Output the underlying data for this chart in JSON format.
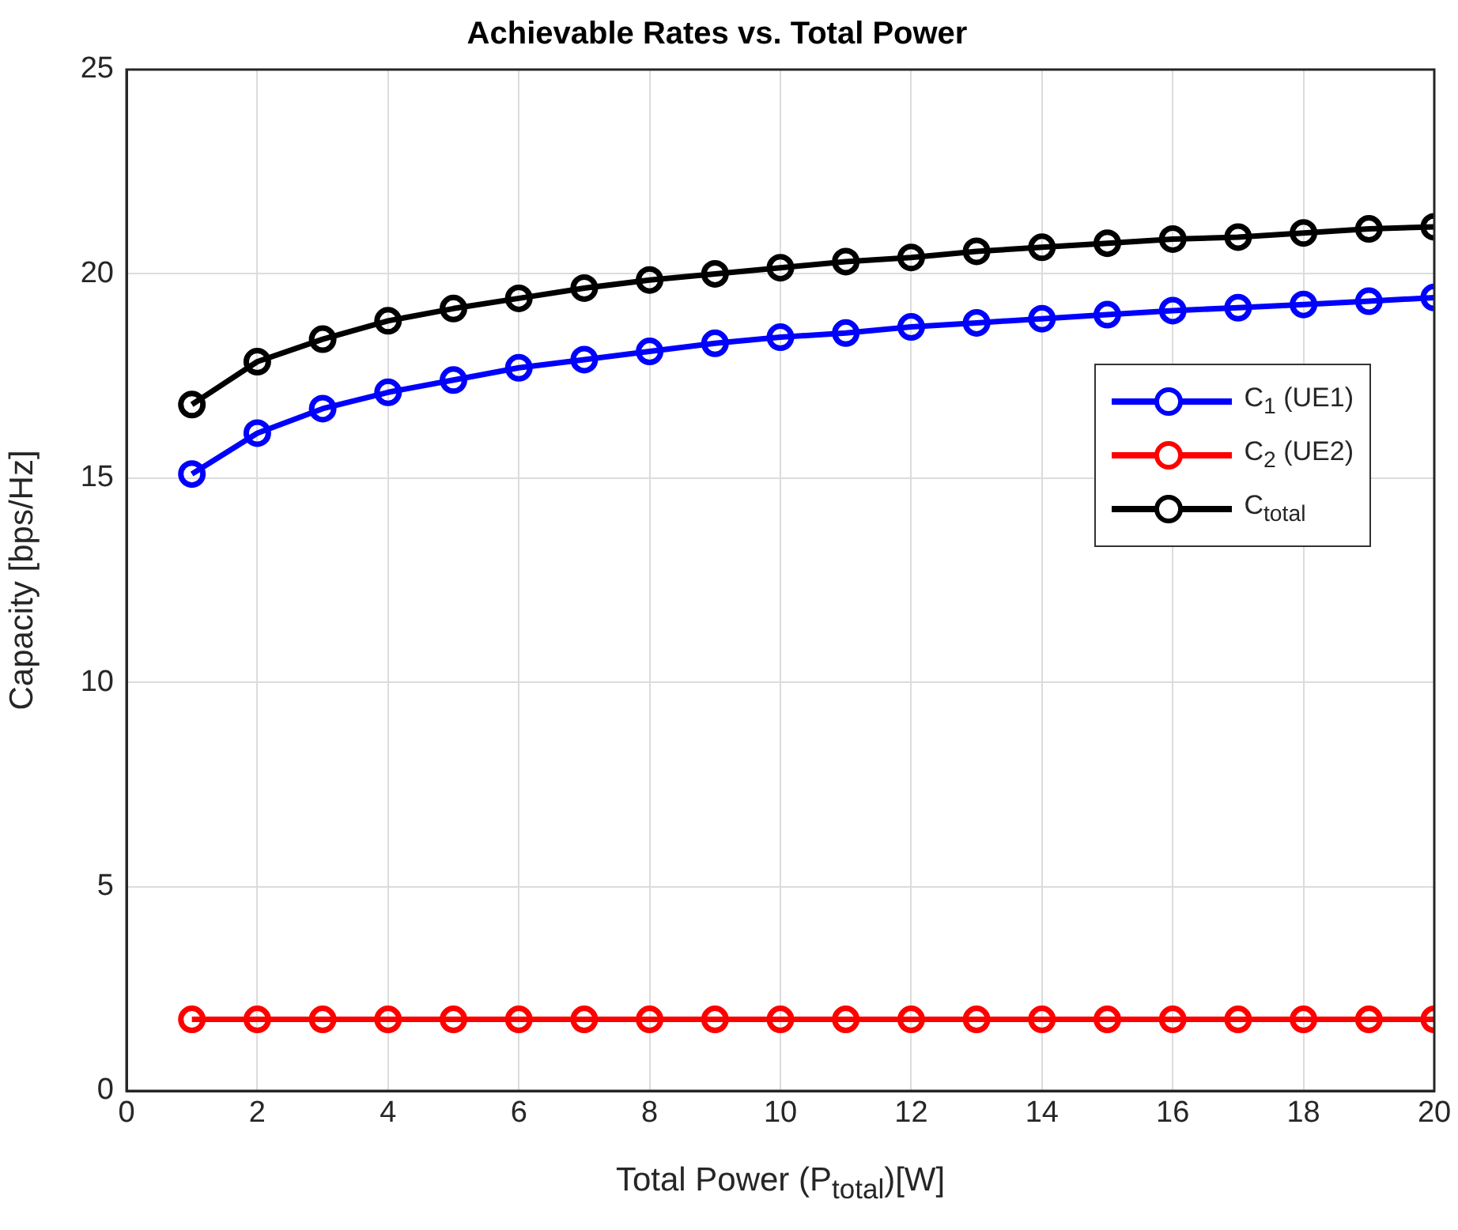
{
  "chart_data": {
    "type": "line",
    "title": "Achievable Rates vs. Total Power",
    "xlabel": "Total Power (P$_{total}$)[W]",
    "ylabel": "Capacity [bps/Hz]",
    "x": [
      1,
      2,
      3,
      4,
      5,
      6,
      7,
      8,
      9,
      10,
      11,
      12,
      13,
      14,
      15,
      16,
      17,
      18,
      19,
      20
    ],
    "series": [
      {
        "name": "C$_{1}$ (UE1)",
        "color": "#0000ff",
        "values": [
          15.1,
          16.1,
          16.7,
          17.1,
          17.4,
          17.7,
          17.9,
          18.1,
          18.3,
          18.45,
          18.55,
          18.7,
          18.8,
          18.9,
          19.0,
          19.1,
          19.17,
          19.25,
          19.33,
          19.42
        ]
      },
      {
        "name": "C$_{2}$ (UE2)",
        "color": "#ff0000",
        "values": [
          1.75,
          1.75,
          1.75,
          1.75,
          1.75,
          1.75,
          1.75,
          1.75,
          1.75,
          1.75,
          1.75,
          1.75,
          1.75,
          1.75,
          1.75,
          1.75,
          1.75,
          1.75,
          1.75,
          1.75
        ]
      },
      {
        "name": "C$_{total}$",
        "color": "#000000",
        "values": [
          16.8,
          17.85,
          18.4,
          18.85,
          19.15,
          19.4,
          19.65,
          19.85,
          20.0,
          20.15,
          20.3,
          20.4,
          20.55,
          20.65,
          20.75,
          20.85,
          20.9,
          21.0,
          21.1,
          21.15
        ]
      }
    ],
    "xlim": [
      0,
      20
    ],
    "xticks": [
      0,
      2,
      4,
      6,
      8,
      10,
      12,
      14,
      16,
      18,
      20
    ],
    "ylim": [
      0,
      25
    ],
    "yticks": [
      0,
      5,
      10,
      15,
      20,
      25
    ],
    "grid": true,
    "legend": "top right",
    "marker": "circle",
    "line_style": "solid"
  }
}
